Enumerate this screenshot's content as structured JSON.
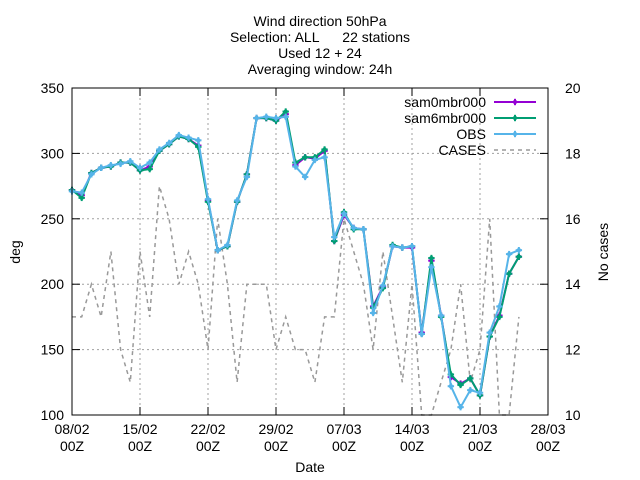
{
  "chart_data": {
    "type": "line",
    "title_lines": [
      "Wind direction 50hPa",
      "Selection: ALL      22 stations",
      "Used 12 + 24",
      "Averaging window: 24h"
    ],
    "xlabel": "Date",
    "ylabel": "deg",
    "y2label": "No cases",
    "x_range": [
      "08/02 00Z",
      "28/03 00Z"
    ],
    "ylim": [
      100,
      350
    ],
    "y2lim": [
      10,
      20
    ],
    "x_ticks": [
      {
        "line1": "08/02",
        "line2": "00Z",
        "day": 0
      },
      {
        "line1": "15/02",
        "line2": "00Z",
        "day": 7
      },
      {
        "line1": "22/02",
        "line2": "00Z",
        "day": 14
      },
      {
        "line1": "29/02",
        "line2": "00Z",
        "day": 21
      },
      {
        "line1": "07/03",
        "line2": "00Z",
        "day": 28
      },
      {
        "line1": "14/03",
        "line2": "00Z",
        "day": 35
      },
      {
        "line1": "21/03",
        "line2": "00Z",
        "day": 42
      },
      {
        "line1": "28/03",
        "line2": "00Z",
        "day": 49
      }
    ],
    "y_ticks": [
      100,
      150,
      200,
      250,
      300,
      350
    ],
    "y2_ticks": [
      10,
      12,
      14,
      16,
      18,
      20
    ],
    "grid": true,
    "legend_position": "top-right",
    "series": [
      {
        "name": "sam0mbr000",
        "color": "#9400d3",
        "axis": "y1",
        "style": "line-points",
        "points": [
          [
            0,
            272
          ],
          [
            1,
            268
          ],
          [
            2,
            285
          ],
          [
            3,
            289
          ],
          [
            4,
            290
          ],
          [
            5,
            293
          ],
          [
            6,
            293
          ],
          [
            7,
            287
          ],
          [
            8,
            290
          ],
          [
            9,
            302
          ],
          [
            10,
            307
          ],
          [
            11,
            313
          ],
          [
            12,
            311
          ],
          [
            13,
            306
          ],
          [
            14,
            264
          ],
          [
            15,
            226
          ],
          [
            16,
            229
          ],
          [
            17,
            263
          ],
          [
            18,
            284
          ],
          [
            19,
            327
          ],
          [
            20,
            327
          ],
          [
            21,
            325
          ],
          [
            22,
            330
          ],
          [
            23,
            291
          ],
          [
            24,
            297
          ],
          [
            25,
            296
          ],
          [
            26,
            302
          ],
          [
            27,
            233
          ],
          [
            28,
            253
          ],
          [
            29,
            243
          ],
          [
            30,
            242
          ],
          [
            31,
            183
          ],
          [
            32,
            198
          ],
          [
            33,
            229
          ],
          [
            34,
            228
          ],
          [
            35,
            228
          ],
          [
            36,
            163
          ],
          [
            37,
            218
          ],
          [
            38,
            176
          ],
          [
            39,
            129
          ],
          [
            40,
            124
          ],
          [
            41,
            128
          ],
          [
            42,
            115
          ],
          [
            43,
            160
          ],
          [
            44,
            176
          ],
          [
            45,
            208
          ],
          [
            46,
            221
          ]
        ]
      },
      {
        "name": "sam6mbr000",
        "color": "#009e73",
        "axis": "y1",
        "style": "line-points",
        "points": [
          [
            0,
            272
          ],
          [
            1,
            266
          ],
          [
            2,
            285
          ],
          [
            3,
            289
          ],
          [
            4,
            290
          ],
          [
            5,
            293
          ],
          [
            6,
            293
          ],
          [
            7,
            287
          ],
          [
            8,
            288
          ],
          [
            9,
            302
          ],
          [
            10,
            307
          ],
          [
            11,
            313
          ],
          [
            12,
            311
          ],
          [
            13,
            305
          ],
          [
            14,
            263
          ],
          [
            15,
            226
          ],
          [
            16,
            229
          ],
          [
            17,
            263
          ],
          [
            18,
            284
          ],
          [
            19,
            327
          ],
          [
            20,
            327
          ],
          [
            21,
            325
          ],
          [
            22,
            332
          ],
          [
            23,
            293
          ],
          [
            24,
            297
          ],
          [
            25,
            297
          ],
          [
            26,
            303
          ],
          [
            27,
            233
          ],
          [
            28,
            255
          ],
          [
            29,
            242
          ],
          [
            30,
            242
          ],
          [
            31,
            182
          ],
          [
            32,
            197
          ],
          [
            33,
            230
          ],
          [
            34,
            228
          ],
          [
            35,
            229
          ],
          [
            36,
            162
          ],
          [
            37,
            220
          ],
          [
            38,
            175
          ],
          [
            39,
            131
          ],
          [
            40,
            123
          ],
          [
            41,
            128
          ],
          [
            42,
            115
          ],
          [
            43,
            160
          ],
          [
            44,
            175
          ],
          [
            45,
            208
          ],
          [
            46,
            221
          ]
        ]
      },
      {
        "name": "OBS",
        "color": "#56b4e9",
        "axis": "y1",
        "style": "line-points",
        "points": [
          [
            0,
            271
          ],
          [
            1,
            270
          ],
          [
            2,
            284
          ],
          [
            3,
            289
          ],
          [
            4,
            291
          ],
          [
            5,
            292
          ],
          [
            6,
            294
          ],
          [
            7,
            289
          ],
          [
            8,
            293
          ],
          [
            9,
            303
          ],
          [
            10,
            308
          ],
          [
            11,
            314
          ],
          [
            12,
            312
          ],
          [
            13,
            310
          ],
          [
            14,
            265
          ],
          [
            15,
            226
          ],
          [
            16,
            230
          ],
          [
            17,
            264
          ],
          [
            18,
            282
          ],
          [
            19,
            327
          ],
          [
            20,
            328
          ],
          [
            21,
            327
          ],
          [
            22,
            328
          ],
          [
            23,
            290
          ],
          [
            24,
            282
          ],
          [
            25,
            295
          ],
          [
            26,
            297
          ],
          [
            27,
            236
          ],
          [
            28,
            254
          ],
          [
            29,
            243
          ],
          [
            30,
            242
          ],
          [
            31,
            178
          ],
          [
            32,
            199
          ],
          [
            33,
            229
          ],
          [
            34,
            228
          ],
          [
            35,
            229
          ],
          [
            36,
            162
          ],
          [
            37,
            213
          ],
          [
            38,
            176
          ],
          [
            39,
            122
          ],
          [
            40,
            106
          ],
          [
            41,
            119
          ],
          [
            42,
            117
          ],
          [
            43,
            163
          ],
          [
            44,
            183
          ],
          [
            45,
            223
          ],
          [
            46,
            226
          ]
        ]
      },
      {
        "name": "CASES",
        "color": "#999999",
        "axis": "y2",
        "style": "dashed-line",
        "points": [
          [
            0,
            13
          ],
          [
            1,
            13
          ],
          [
            2,
            14
          ],
          [
            3,
            13
          ],
          [
            4,
            15
          ],
          [
            5,
            12
          ],
          [
            6,
            11
          ],
          [
            7,
            15
          ],
          [
            8,
            13
          ],
          [
            9,
            17
          ],
          [
            10,
            16
          ],
          [
            11,
            14
          ],
          [
            12,
            15
          ],
          [
            13,
            14
          ],
          [
            14,
            12
          ],
          [
            15,
            16
          ],
          [
            16,
            14
          ],
          [
            17,
            11
          ],
          [
            18,
            14
          ],
          [
            19,
            14
          ],
          [
            20,
            14
          ],
          [
            21,
            12
          ],
          [
            22,
            13
          ],
          [
            23,
            12
          ],
          [
            24,
            12
          ],
          [
            25,
            11
          ],
          [
            26,
            13
          ],
          [
            27,
            13
          ],
          [
            28,
            16
          ],
          [
            29,
            15
          ],
          [
            30,
            14
          ],
          [
            31,
            12
          ],
          [
            32,
            15
          ],
          [
            33,
            13
          ],
          [
            34,
            11
          ],
          [
            35,
            14
          ],
          [
            36,
            10
          ],
          [
            37,
            10
          ],
          [
            38,
            11
          ],
          [
            39,
            12
          ],
          [
            40,
            14
          ],
          [
            41,
            11
          ],
          [
            42,
            12
          ],
          [
            43,
            16
          ],
          [
            44,
            10
          ],
          [
            45,
            10
          ],
          [
            46,
            13
          ]
        ]
      }
    ]
  }
}
